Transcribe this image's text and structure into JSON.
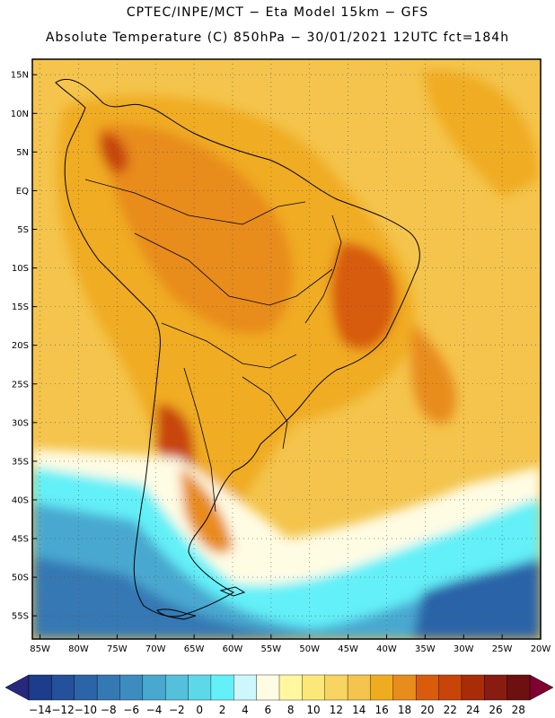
{
  "header": {
    "line1": "CPTEC/INPE/MCT −  Eta Model 15km − GFS",
    "line2": "Absolute Temperature (C) 850hPa − 30/01/2021 12UTC fct=184h"
  },
  "map": {
    "lon_range": [
      -86,
      -20
    ],
    "lat_range": [
      -58,
      17
    ],
    "lat_ticks": [
      {
        "value": 15,
        "label": "15N"
      },
      {
        "value": 10,
        "label": "10N"
      },
      {
        "value": 5,
        "label": "5N"
      },
      {
        "value": 0,
        "label": "EQ"
      },
      {
        "value": -5,
        "label": "5S"
      },
      {
        "value": -10,
        "label": "10S"
      },
      {
        "value": -15,
        "label": "15S"
      },
      {
        "value": -20,
        "label": "20S"
      },
      {
        "value": -25,
        "label": "25S"
      },
      {
        "value": -30,
        "label": "30S"
      },
      {
        "value": -35,
        "label": "35S"
      },
      {
        "value": -40,
        "label": "40S"
      },
      {
        "value": -45,
        "label": "45S"
      },
      {
        "value": -50,
        "label": "50S"
      },
      {
        "value": -55,
        "label": "55S"
      }
    ],
    "lon_ticks": [
      {
        "value": -85,
        "label": "85W"
      },
      {
        "value": -80,
        "label": "80W"
      },
      {
        "value": -75,
        "label": "75W"
      },
      {
        "value": -70,
        "label": "70W"
      },
      {
        "value": -65,
        "label": "65W"
      },
      {
        "value": -60,
        "label": "60W"
      },
      {
        "value": -55,
        "label": "55W"
      },
      {
        "value": -50,
        "label": "50W"
      },
      {
        "value": -45,
        "label": "45W"
      },
      {
        "value": -40,
        "label": "40W"
      },
      {
        "value": -35,
        "label": "35W"
      },
      {
        "value": -30,
        "label": "30W"
      },
      {
        "value": -25,
        "label": "25W"
      },
      {
        "value": -20,
        "label": "20W"
      }
    ]
  },
  "colorbar": {
    "labels": [
      "−14",
      "−12",
      "−10",
      "−8",
      "−6",
      "−4",
      "−2",
      "0",
      "2",
      "4",
      "6",
      "8",
      "10",
      "12",
      "14",
      "16",
      "18",
      "20",
      "22",
      "24",
      "26",
      "28"
    ],
    "colors": [
      "#1c3c8c",
      "#24509c",
      "#2c64a8",
      "#3478b4",
      "#3c8cc0",
      "#48a8d0",
      "#54c0dc",
      "#5cd8e8",
      "#64f0f8",
      "#ccf8fc",
      "#fffce4",
      "#fff8a0",
      "#fce878",
      "#f8d460",
      "#f4c44c",
      "#f0ac20",
      "#e88c1c",
      "#d85c0c",
      "#c84408",
      "#a82c08",
      "#881c10",
      "#6c1010"
    ],
    "low_arrow_color": "#28287c",
    "high_arrow_color": "#800030"
  }
}
